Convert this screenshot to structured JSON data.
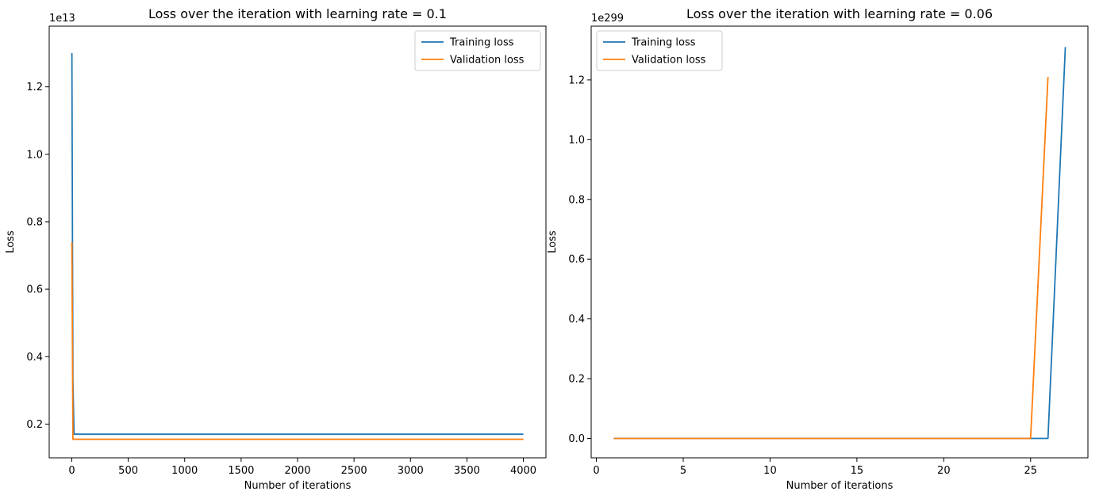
{
  "chart_data": [
    {
      "type": "line",
      "title": "Loss over the iteration with learning rate = 0.1",
      "xlabel": "Number of iterations",
      "ylabel": "Loss",
      "y_offset_label": "1e13",
      "y_scale": 10000000000000,
      "xlim": [
        -200,
        4200
      ],
      "ylim": [
        0.1,
        1.38
      ],
      "x_ticks": [
        0,
        500,
        1000,
        1500,
        2000,
        2500,
        3000,
        3500,
        4000
      ],
      "x_tick_labels": [
        "0",
        "500",
        "1000",
        "1500",
        "2000",
        "2500",
        "3000",
        "3500",
        "4000"
      ],
      "y_ticks": [
        0.2,
        0.4,
        0.6,
        0.8,
        1.0,
        1.2
      ],
      "y_tick_labels": [
        "0.2",
        "0.4",
        "0.6",
        "0.8",
        "1.0",
        "1.2"
      ],
      "grid": false,
      "legend_position": "upper right",
      "series": [
        {
          "name": "Training loss",
          "color": "#1f77b4",
          "x": [
            1,
            10,
            20,
            100,
            500,
            1000,
            2000,
            3000,
            4000
          ],
          "y": [
            1.3,
            0.33,
            0.17,
            0.17,
            0.17,
            0.17,
            0.17,
            0.17,
            0.17
          ]
        },
        {
          "name": "Validation loss",
          "color": "#ff7f0e",
          "x": [
            1,
            10,
            20,
            100,
            500,
            1000,
            2000,
            3000,
            4000
          ],
          "y": [
            0.74,
            0.155,
            0.155,
            0.155,
            0.155,
            0.155,
            0.155,
            0.155,
            0.155
          ]
        }
      ]
    },
    {
      "type": "line",
      "title": "Loss over the iteration with learning rate = 0.06",
      "xlabel": "Number of iterations",
      "ylabel": "Loss",
      "y_offset_label": "1e299",
      "xlim": [
        -0.3,
        28.3
      ],
      "ylim": [
        -0.065,
        1.38
      ],
      "x_ticks": [
        0,
        5,
        10,
        15,
        20,
        25
      ],
      "x_tick_labels": [
        "0",
        "5",
        "10",
        "15",
        "20",
        "25"
      ],
      "y_ticks": [
        0.0,
        0.2,
        0.4,
        0.6,
        0.8,
        1.0,
        1.2
      ],
      "y_tick_labels": [
        "0.0",
        "0.2",
        "0.4",
        "0.6",
        "0.8",
        "1.0",
        "1.2"
      ],
      "grid": false,
      "legend_position": "upper left",
      "series": [
        {
          "name": "Training loss",
          "color": "#1f77b4",
          "x": [
            1,
            5,
            10,
            15,
            20,
            25,
            26,
            27
          ],
          "y": [
            0,
            0,
            0,
            0,
            0,
            0,
            0,
            1.31
          ]
        },
        {
          "name": "Validation loss",
          "color": "#ff7f0e",
          "x": [
            1,
            5,
            10,
            15,
            20,
            25,
            26
          ],
          "y": [
            0,
            0,
            0,
            0,
            0,
            0,
            1.21
          ]
        }
      ]
    }
  ]
}
